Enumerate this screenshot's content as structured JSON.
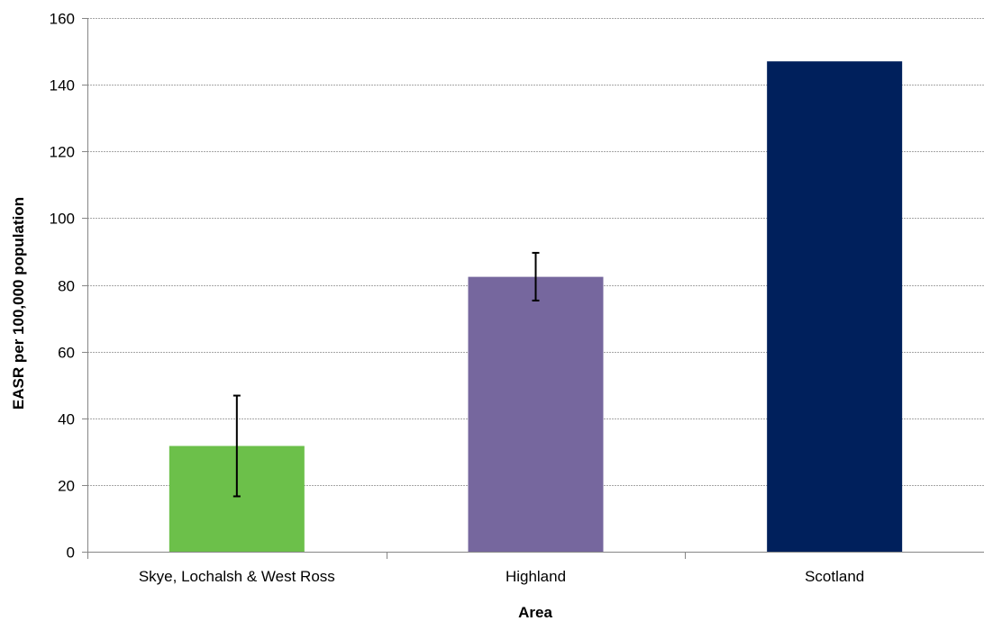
{
  "chart_data": {
    "type": "bar",
    "categories": [
      "Skye, Lochalsh & West Ross",
      "Highland",
      "Scotland"
    ],
    "values": [
      31.7,
      82.4,
      147.0
    ],
    "error_bars": [
      {
        "low": 16.6,
        "high": 46.8
      },
      {
        "low": 75.3,
        "high": 89.6
      },
      null
    ],
    "colors": [
      "#6CC04A",
      "#76679E",
      "#00205C"
    ],
    "title": "",
    "xlabel": "Area",
    "ylabel": "EASR per 100,000 population",
    "ylim": [
      0,
      160
    ],
    "yticks": [
      0,
      20,
      40,
      60,
      80,
      100,
      120,
      140,
      160
    ],
    "grid": true,
    "gridline_color": "#a6a6a6",
    "legend": "none"
  }
}
